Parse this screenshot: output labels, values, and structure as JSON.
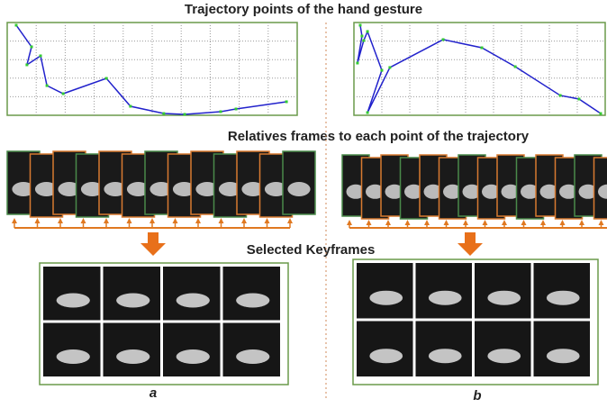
{
  "title": "Trajectory points of the hand gesture",
  "frames_heading": "Relatives frames to each point of the trajectory",
  "keyframes_heading": "Selected  Keyframes",
  "panels": [
    {
      "label": "a",
      "trajectory": {
        "x": [
          3.1,
          8.4,
          6.8,
          11.5,
          13.7,
          19.3,
          34.2,
          42.5,
          54.0,
          61.2,
          73.6,
          78.9,
          96.3
        ],
        "y": [
          2.9,
          26.2,
          45.6,
          35.9,
          68.0,
          76.7,
          60.2,
          90.3,
          98.1,
          99.0,
          96.1,
          93.2,
          85.4
        ]
      }
    },
    {
      "label": "b",
      "trajectory": {
        "x": [
          2.5,
          3.2,
          1.4,
          3.9,
          5.4,
          11.1,
          5.4,
          14.3,
          35.5,
          50.9,
          64.2,
          82.1,
          89.6,
          98.2
        ],
        "y": [
          2.9,
          14.6,
          43.7,
          19.4,
          9.7,
          51.5,
          97.1,
          48.5,
          18.4,
          27.2,
          47.6,
          78.6,
          82.5,
          98.1
        ]
      }
    }
  ]
}
